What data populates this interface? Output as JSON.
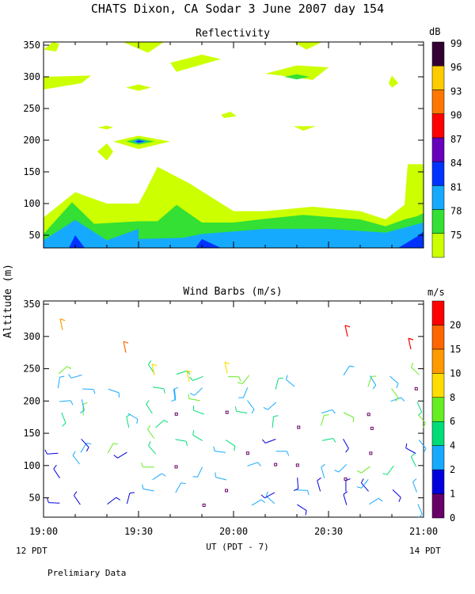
{
  "header": {
    "title": "CHATS Dixon, CA  Sodar   3 June 2007  day 154",
    "footer_left": "12 PDT",
    "footer_right": "14 PDT",
    "note": "Prelimiary Data"
  },
  "chart_data": [
    {
      "type": "heatmap",
      "title": "Reflectivity",
      "xlabel": "",
      "ylabel": "Altitude (m)",
      "x_range_minutes_UT": [
        1140,
        1260
      ],
      "xticks": [
        "19:00",
        "19:30",
        "20:00",
        "20:30",
        "21:00"
      ],
      "ylim": [
        30,
        355
      ],
      "yticks": [
        50,
        100,
        150,
        200,
        250,
        300,
        350
      ],
      "colorbar": {
        "unit": "dB",
        "levels": [
          75,
          78,
          81,
          84,
          87,
          90,
          93,
          96,
          99
        ],
        "colors": [
          "#ccff00",
          "#33e033",
          "#16aaff",
          "#0033ff",
          "#6600bb",
          "#ff0000",
          "#ff7700",
          "#ffcc00",
          "#330033"
        ]
      },
      "grid": false
    },
    {
      "type": "scatter",
      "title": "Wind Barbs (m/s)",
      "xlabel": "UT  (PDT - 7)",
      "ylabel": "Altitude (m)",
      "x_range_minutes_UT": [
        1140,
        1260
      ],
      "xticks": [
        "19:00",
        "19:30",
        "20:00",
        "20:30",
        "21:00"
      ],
      "ylim": [
        20,
        355
      ],
      "yticks": [
        50,
        100,
        150,
        200,
        250,
        300,
        350
      ],
      "colorbar": {
        "unit": "m/s",
        "labels": [
          "0",
          "1",
          "2",
          "4",
          "6",
          "8",
          "10",
          "15",
          "20"
        ],
        "colors": [
          "#660066",
          "#0000dd",
          "#16aaff",
          "#00dd77",
          "#66ee22",
          "#ffdd00",
          "#ff9900",
          "#ff6600",
          "#ff0000"
        ]
      },
      "grid": false
    }
  ],
  "axis": {
    "ylabel": "Altitude (m)"
  }
}
